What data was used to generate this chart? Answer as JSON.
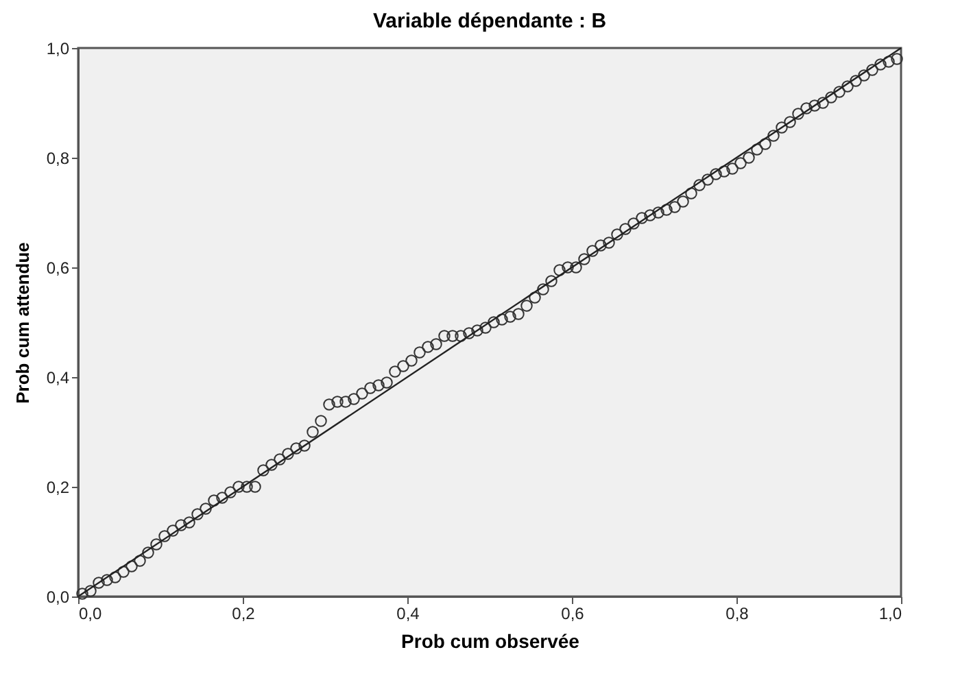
{
  "chart_data": {
    "type": "scatter",
    "title": "Variable dépendante : B",
    "xlabel": "Prob cum observée",
    "ylabel": "Prob cum attendue",
    "xlim": [
      0,
      1
    ],
    "ylim": [
      0,
      1
    ],
    "xticks": [
      {
        "value": 0,
        "label": "0,0"
      },
      {
        "value": 0.2,
        "label": "0,2"
      },
      {
        "value": 0.4,
        "label": "0,4"
      },
      {
        "value": 0.6,
        "label": "0,6"
      },
      {
        "value": 0.8,
        "label": "0,8"
      },
      {
        "value": 1,
        "label": "1,0"
      }
    ],
    "yticks": [
      {
        "value": 0,
        "label": "0,0"
      },
      {
        "value": 0.2,
        "label": "0,2"
      },
      {
        "value": 0.4,
        "label": "0,4"
      },
      {
        "value": 0.6,
        "label": "0,6"
      },
      {
        "value": 0.8,
        "label": "0,8"
      },
      {
        "value": 1,
        "label": "1,0"
      }
    ],
    "grid": false,
    "series": [
      {
        "marker": "circle",
        "color": "#333333",
        "x": [
          0.005,
          0.015,
          0.025,
          0.035,
          0.045,
          0.055,
          0.065,
          0.075,
          0.085,
          0.095,
          0.105,
          0.115,
          0.125,
          0.135,
          0.145,
          0.155,
          0.165,
          0.175,
          0.185,
          0.195,
          0.205,
          0.215,
          0.225,
          0.235,
          0.245,
          0.255,
          0.265,
          0.275,
          0.285,
          0.295,
          0.305,
          0.315,
          0.325,
          0.335,
          0.345,
          0.355,
          0.365,
          0.375,
          0.385,
          0.395,
          0.405,
          0.415,
          0.425,
          0.435,
          0.445,
          0.455,
          0.465,
          0.475,
          0.485,
          0.495,
          0.505,
          0.515,
          0.525,
          0.535,
          0.545,
          0.555,
          0.565,
          0.575,
          0.585,
          0.595,
          0.605,
          0.615,
          0.625,
          0.635,
          0.645,
          0.655,
          0.665,
          0.675,
          0.685,
          0.695,
          0.705,
          0.715,
          0.725,
          0.735,
          0.745,
          0.755,
          0.765,
          0.775,
          0.785,
          0.795,
          0.805,
          0.815,
          0.825,
          0.835,
          0.845,
          0.855,
          0.865,
          0.875,
          0.885,
          0.895,
          0.905,
          0.915,
          0.925,
          0.935,
          0.945,
          0.955,
          0.965,
          0.975,
          0.985,
          0.995
        ],
        "values": [
          0.005,
          0.01,
          0.025,
          0.03,
          0.035,
          0.045,
          0.055,
          0.065,
          0.08,
          0.095,
          0.11,
          0.12,
          0.13,
          0.135,
          0.15,
          0.16,
          0.175,
          0.18,
          0.19,
          0.2,
          0.2,
          0.2,
          0.23,
          0.24,
          0.25,
          0.26,
          0.27,
          0.275,
          0.3,
          0.32,
          0.35,
          0.355,
          0.355,
          0.36,
          0.37,
          0.38,
          0.385,
          0.39,
          0.41,
          0.42,
          0.43,
          0.445,
          0.455,
          0.46,
          0.475,
          0.475,
          0.475,
          0.48,
          0.485,
          0.49,
          0.5,
          0.505,
          0.51,
          0.515,
          0.53,
          0.545,
          0.56,
          0.575,
          0.595,
          0.6,
          0.6,
          0.615,
          0.63,
          0.64,
          0.645,
          0.66,
          0.67,
          0.68,
          0.69,
          0.695,
          0.7,
          0.705,
          0.71,
          0.72,
          0.735,
          0.75,
          0.76,
          0.77,
          0.775,
          0.78,
          0.79,
          0.8,
          0.815,
          0.825,
          0.84,
          0.855,
          0.865,
          0.88,
          0.89,
          0.895,
          0.9,
          0.91,
          0.92,
          0.93,
          0.94,
          0.95,
          0.96,
          0.97,
          0.975,
          0.98
        ]
      },
      {
        "type": "line",
        "color": "#222222",
        "x": [
          0,
          1
        ],
        "values": [
          0,
          1
        ]
      }
    ]
  }
}
